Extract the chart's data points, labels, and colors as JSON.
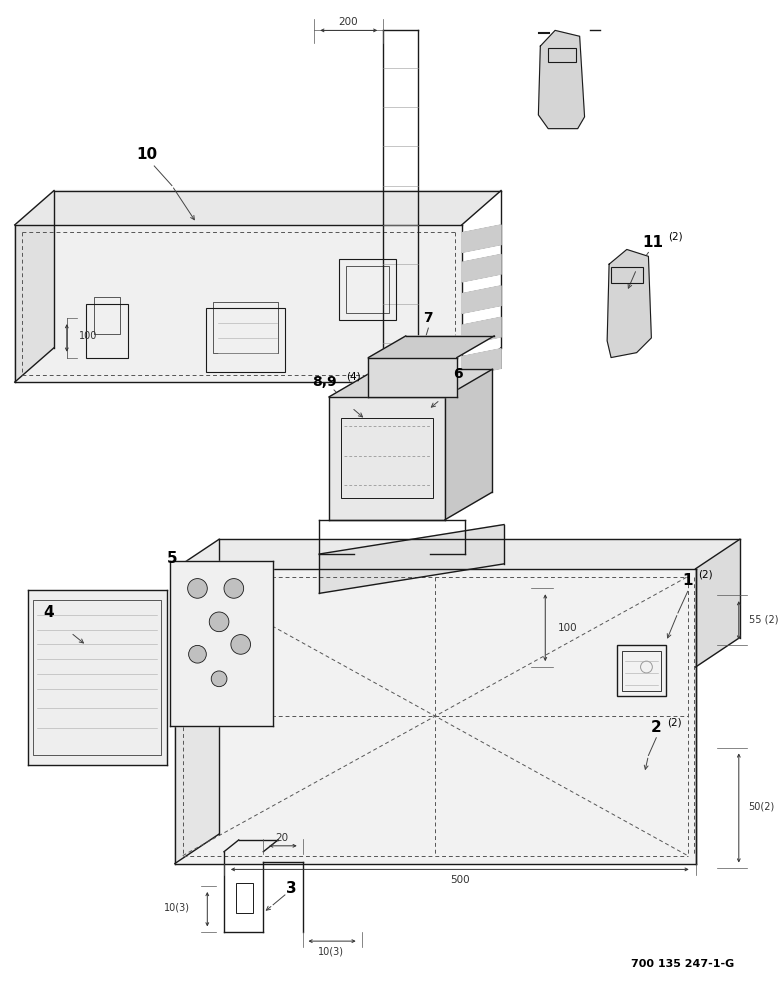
{
  "bg_color": "#ffffff",
  "line_color": "#1a1a1a",
  "dim_color": "#333333",
  "part_number_color": "#000000",
  "reference_id": "700 135 247-1-G"
}
